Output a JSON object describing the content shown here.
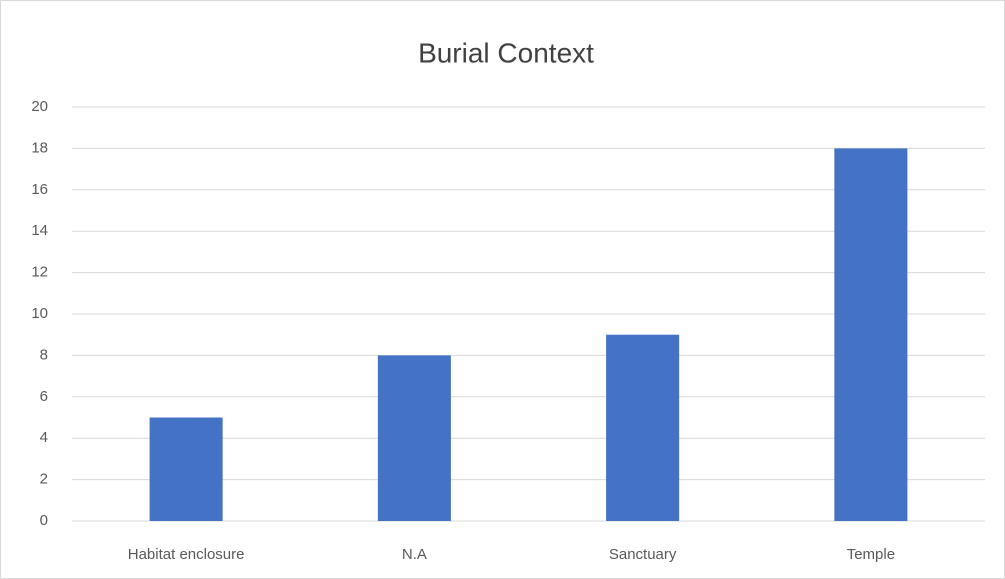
{
  "chart_data": {
    "type": "bar",
    "title": "Burial Context",
    "categories": [
      "Habitat enclosure",
      "N.A",
      "Sanctuary",
      "Temple"
    ],
    "values": [
      5,
      8,
      9,
      18
    ],
    "color": "#4472c4",
    "ylim": [
      0,
      20
    ],
    "yticks": [
      0,
      2,
      4,
      6,
      8,
      10,
      12,
      14,
      16,
      18,
      20
    ],
    "grid": true
  }
}
